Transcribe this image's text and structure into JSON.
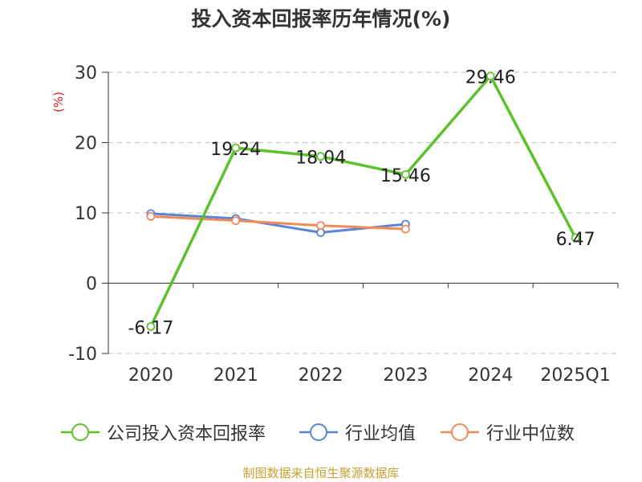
{
  "title": "投入资本回报率历年情况(%)",
  "source": "制图数据来自恒生聚源数据库",
  "chart_data": {
    "type": "line",
    "title": "投入资本回报率历年情况(%)",
    "ylabel": "(%)",
    "ylim": [
      -10,
      30
    ],
    "yticks": [
      -10,
      0,
      10,
      20,
      30
    ],
    "grid": true,
    "legend_position": "bottom",
    "categories": [
      "2020",
      "2021",
      "2022",
      "2023",
      "2024",
      "2025Q1"
    ],
    "series": [
      {
        "name": "公司投入资本回报率",
        "color": "#5dc12a",
        "values": [
          -6.17,
          19.24,
          18.04,
          15.46,
          29.46,
          6.47
        ],
        "show_labels": true
      },
      {
        "name": "行业均值",
        "color": "#5b84d6",
        "values": [
          9.9,
          9.2,
          7.2,
          8.4,
          null,
          null
        ],
        "show_labels": false
      },
      {
        "name": "行业中位数",
        "color": "#f08c5a",
        "values": [
          9.5,
          8.9,
          8.2,
          7.7,
          null,
          null
        ],
        "show_labels": false
      }
    ]
  }
}
